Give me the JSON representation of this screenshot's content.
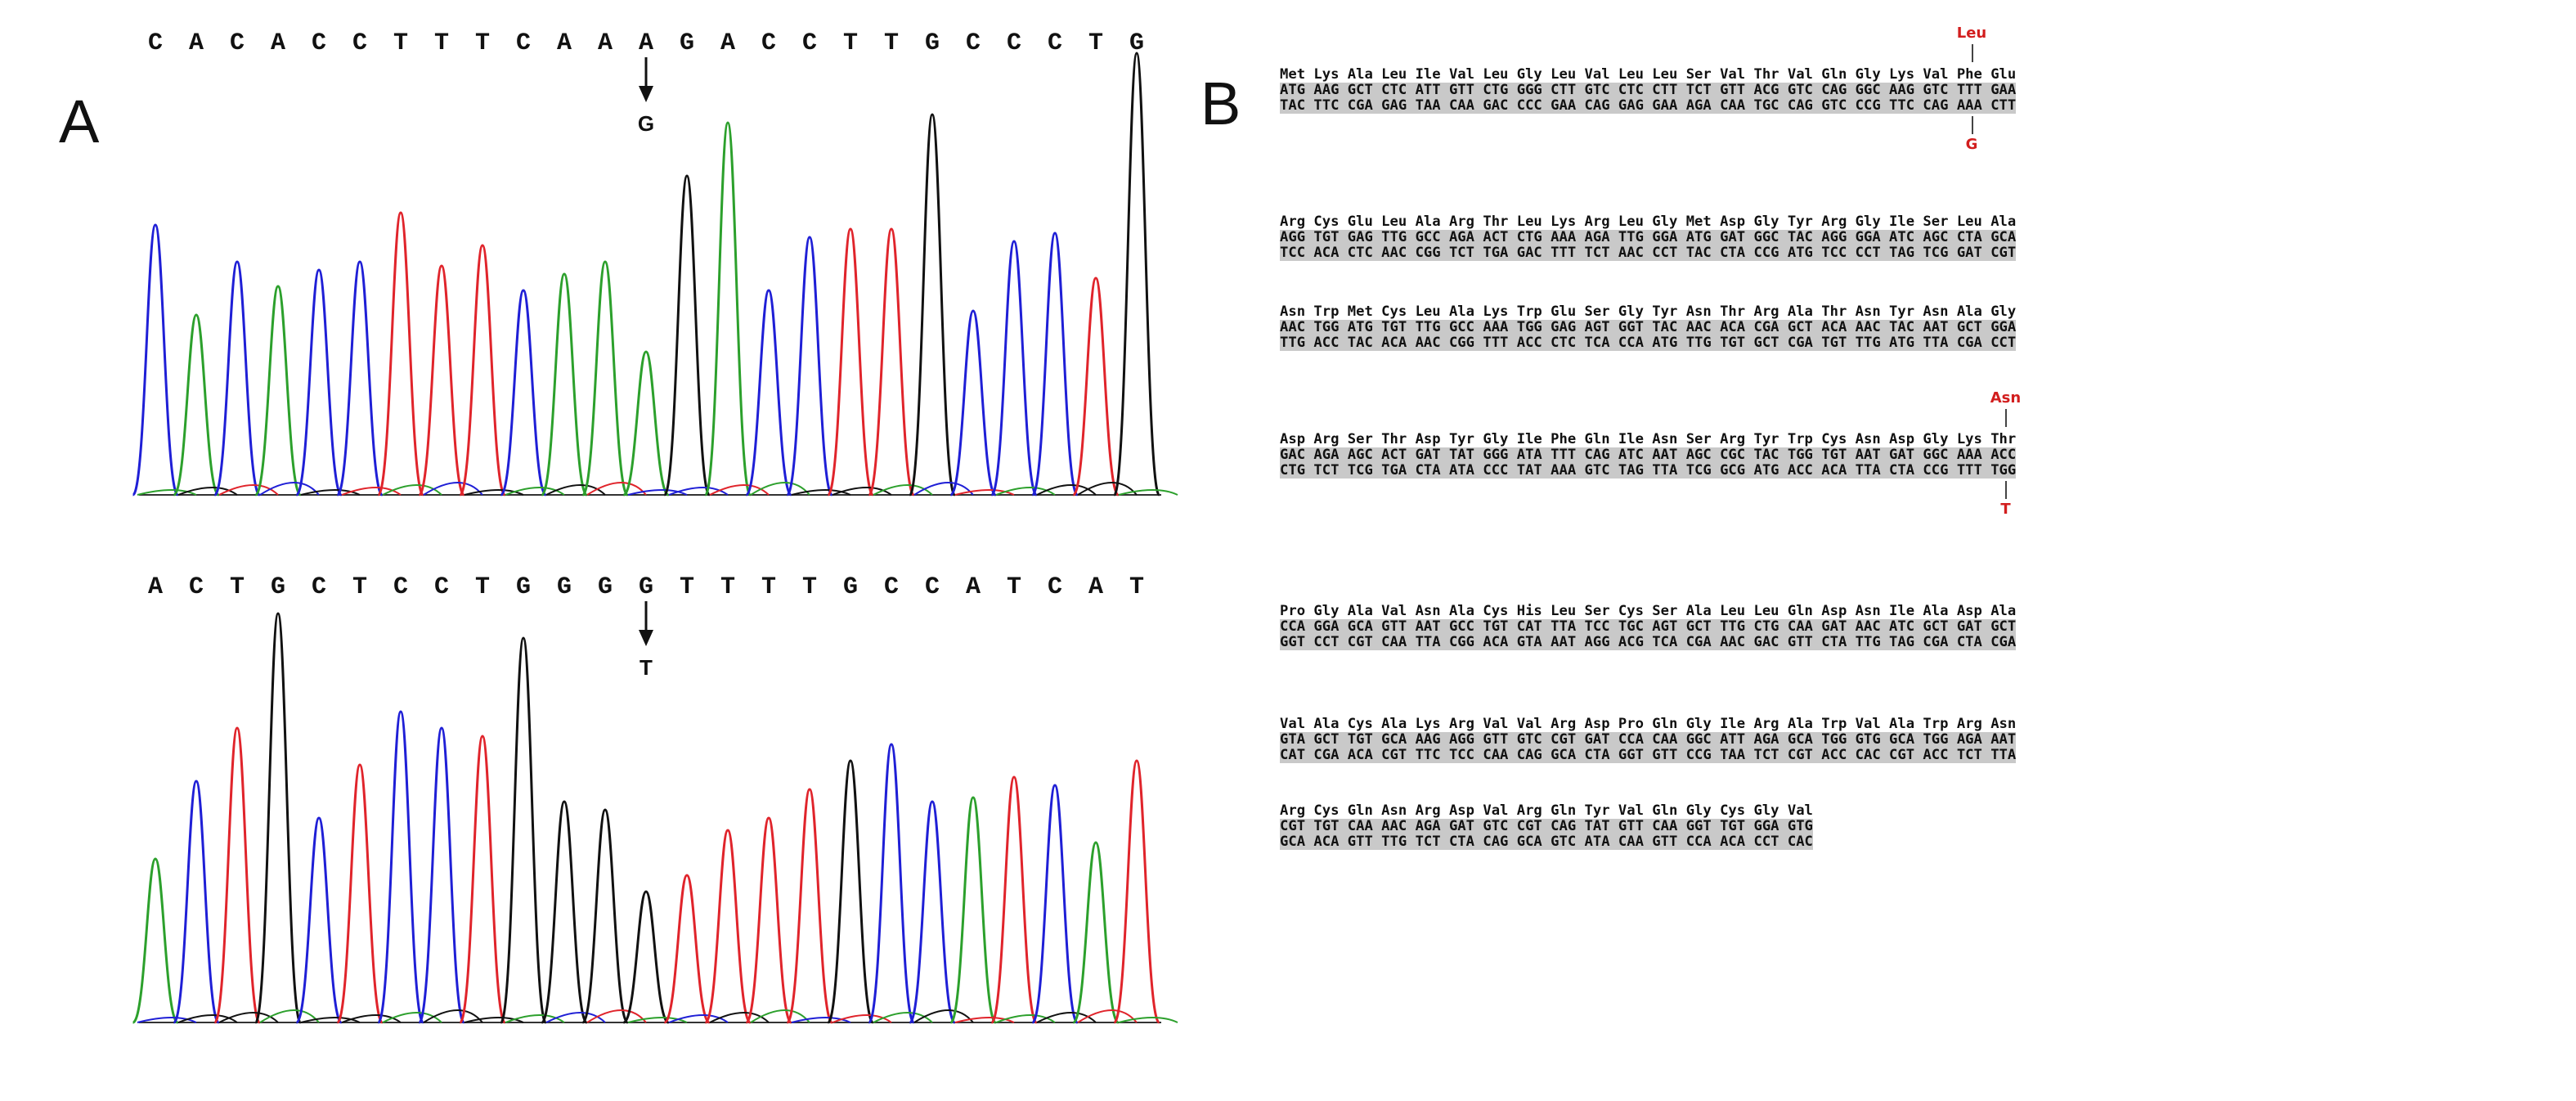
{
  "panels": {
    "a_label": "A",
    "b_label": "B"
  },
  "chromatogram1": {
    "bases": [
      "C",
      "A",
      "C",
      "A",
      "C",
      "C",
      "T",
      "T",
      "T",
      "C",
      "A",
      "A",
      "A",
      "G",
      "A",
      "C",
      "C",
      "T",
      "T",
      "G",
      "C",
      "C",
      "C",
      "T",
      "G"
    ],
    "mutation_index": 12,
    "mutation_base": "G"
  },
  "chromatogram2": {
    "bases": [
      "A",
      "C",
      "T",
      "G",
      "C",
      "T",
      "C",
      "C",
      "T",
      "G",
      "G",
      "G",
      "G",
      "T",
      "T",
      "T",
      "T",
      "G",
      "C",
      "C",
      "A",
      "T",
      "C",
      "A",
      "T"
    ],
    "mutation_index": 12,
    "mutation_base": "T"
  },
  "colors": {
    "A": "#2ca02c",
    "C": "#1f1fd6",
    "G": "#111111",
    "T": "#e0242b",
    "mutation": "#d21e1e",
    "codon_bg": "#c9c9c9"
  },
  "sequence_blocks": [
    {
      "aa": "Met Lys Ala Leu Ile Val Leu Gly Leu Val Leu Leu Ser Val Thr Val Gln Gly Lys Val Phe Glu",
      "codons1": "ATG AAG GCT CTC ATT GTT CTG GGG CTT GTC CTC CTT TCT GTT ACG GTC CAG GGC AAG GTC TTT GAA",
      "codons2": "TAC TTC CGA GAG TAA CAA GAC CCC GAA CAG GAG GAA AGA CAA TGC CAG GTC CCG TTC CAG AAA CTT"
    },
    {
      "aa": "Arg Cys Glu Leu Ala Arg Thr Leu Lys Arg Leu Gly Met Asp Gly Tyr Arg Gly Ile Ser Leu Ala",
      "codons1": "AGG TGT GAG TTG GCC AGA ACT CTG AAA AGA TTG GGA ATG GAT GGC TAC AGG GGA ATC AGC CTA GCA",
      "codons2": "TCC ACA CTC AAC CGG TCT TGA GAC TTT TCT AAC CCT TAC CTA CCG ATG TCC CCT TAG TCG GAT CGT"
    },
    {
      "aa": "Asn Trp Met Cys Leu Ala Lys Trp Glu Ser Gly Tyr Asn Thr Arg Ala Thr Asn Tyr Asn Ala Gly",
      "codons1": "AAC TGG ATG TGT TTG GCC AAA TGG GAG AGT GGT TAC AAC ACA CGA GCT ACA AAC TAC AAT GCT GGA",
      "codons2": "TTG ACC TAC ACA AAC CGG TTT ACC CTC TCA CCA ATG TTG TGT GCT CGA TGT TTG ATG TTA CGA CCT"
    },
    {
      "aa": "Asp Arg Ser Thr Asp Tyr Gly Ile Phe Gln Ile Asn Ser Arg Tyr Trp Cys Asn Asp Gly Lys Thr",
      "codons1": "GAC AGA AGC ACT GAT TAT GGG ATA TTT CAG ATC AAT AGC CGC TAC TGG TGT AAT GAT GGC AAA ACC",
      "codons2": "CTG TCT TCG TGA CTA ATA CCC TAT AAA GTC TAG TTA TCG GCG ATG ACC ACA TTA CTA CCG TTT TGG"
    },
    {
      "aa": "Pro Gly Ala Val Asn Ala Cys His Leu Ser Cys Ser Ala Leu Leu Gln Asp Asn Ile Ala Asp Ala",
      "codons1": "CCA GGA GCA GTT AAT GCC TGT CAT TTA TCC TGC AGT GCT TTG CTG CAA GAT AAC ATC GCT GAT GCT",
      "codons2": "GGT CCT CGT CAA TTA CGG ACA GTA AAT AGG ACG TCA CGA AAC GAC GTT CTA TTG TAG CGA CTA CGA"
    },
    {
      "aa": "Val Ala Cys Ala Lys Arg Val Val Arg Asp Pro Gln Gly Ile Arg Ala Trp Val Ala Trp Arg Asn",
      "codons1": "GTA GCT TGT GCA AAG AGG GTT GTC CGT GAT CCA CAA GGC ATT AGA GCA TGG GTG GCA TGG AGA AAT",
      "codons2": "CAT CGA ACA CGT TTC TCC CAA CAG GCA CTA GGT GTT CCG TAA TCT CGT ACC CAC CGT ACC TCT TTA"
    },
    {
      "aa": "Arg Cys Gln Asn Arg Asp Val Arg Gln Tyr Val Gln Gly Cys Gly Val",
      "codons1": "CGT TGT CAA AAC AGA GAT GTC CGT CAG TAT GTT CAA GGT TGT GGA GTG",
      "codons2": "GCA ACA GTT TTG TCT CTA CAG GCA GTC ATA CAA GTT CCA ACA CCT CAC"
    }
  ],
  "mutations": [
    {
      "block": 0,
      "position": 20,
      "aa": "Leu",
      "base": "G"
    },
    {
      "block": 3,
      "position": 21,
      "aa": "Asn",
      "base": "T"
    }
  ]
}
